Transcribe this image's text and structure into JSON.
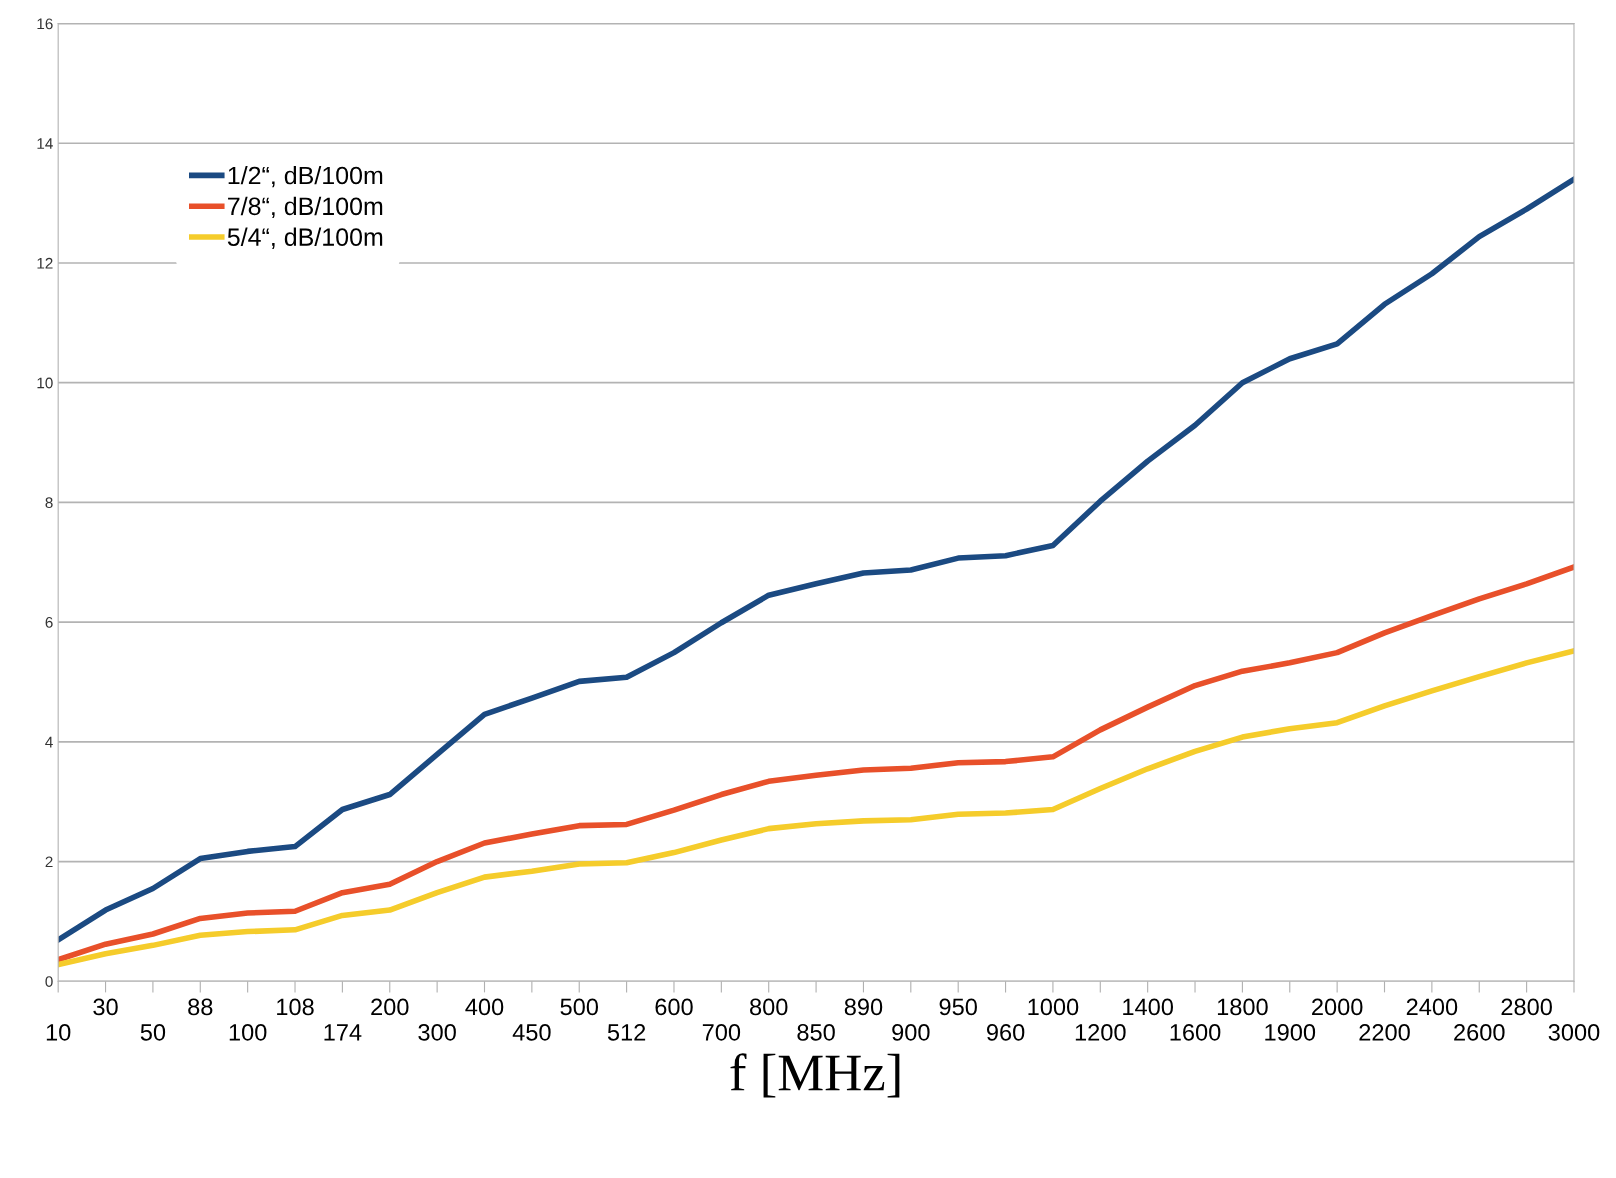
{
  "chart_data": {
    "type": "line",
    "xlabel": "f [MHz]",
    "categories": [
      "10",
      "30",
      "50",
      "88",
      "100",
      "108",
      "174",
      "200",
      "300",
      "400",
      "450",
      "500",
      "512",
      "600",
      "700",
      "800",
      "850",
      "890",
      "900",
      "950",
      "960",
      "1000",
      "1200",
      "1400",
      "1600",
      "1800",
      "1900",
      "2000",
      "2200",
      "2400",
      "2600",
      "2800",
      "3000"
    ],
    "series": [
      {
        "name": "1/2“, dB/100m",
        "color": "#1b4a82",
        "values": [
          0.69,
          1.19,
          1.55,
          2.05,
          2.17,
          2.25,
          2.87,
          3.12,
          3.79,
          4.46,
          4.73,
          5.01,
          5.08,
          5.49,
          5.99,
          6.45,
          6.64,
          6.82,
          6.87,
          7.07,
          7.11,
          7.28,
          8.02,
          8.69,
          9.29,
          10.0,
          10.4,
          10.65,
          11.31,
          11.82,
          12.44,
          12.9,
          13.4
        ]
      },
      {
        "name": "7/8“, dB/100m",
        "color": "#e8502a",
        "values": [
          0.36,
          0.62,
          0.79,
          1.05,
          1.14,
          1.17,
          1.48,
          1.62,
          2.0,
          2.31,
          2.46,
          2.6,
          2.62,
          2.86,
          3.12,
          3.34,
          3.44,
          3.53,
          3.56,
          3.65,
          3.67,
          3.75,
          4.2,
          4.58,
          4.94,
          5.18,
          5.32,
          5.49,
          5.82,
          6.11,
          6.39,
          6.64,
          6.92
        ]
      },
      {
        "name": "5/4“, dB/100m",
        "color": "#f5cc2b",
        "values": [
          0.28,
          0.46,
          0.6,
          0.77,
          0.83,
          0.86,
          1.1,
          1.19,
          1.48,
          1.74,
          1.84,
          1.96,
          1.98,
          2.15,
          2.36,
          2.55,
          2.63,
          2.68,
          2.7,
          2.79,
          2.81,
          2.87,
          3.22,
          3.55,
          3.84,
          4.08,
          4.22,
          4.32,
          4.6,
          4.85,
          5.09,
          5.32,
          5.52
        ]
      }
    ],
    "ylim": [
      0,
      16
    ],
    "yticks": [
      0,
      2,
      4,
      6,
      8,
      10,
      12,
      14,
      16
    ],
    "grid": "y",
    "legend": "top left",
    "marker": "none",
    "line_style": "solid"
  }
}
